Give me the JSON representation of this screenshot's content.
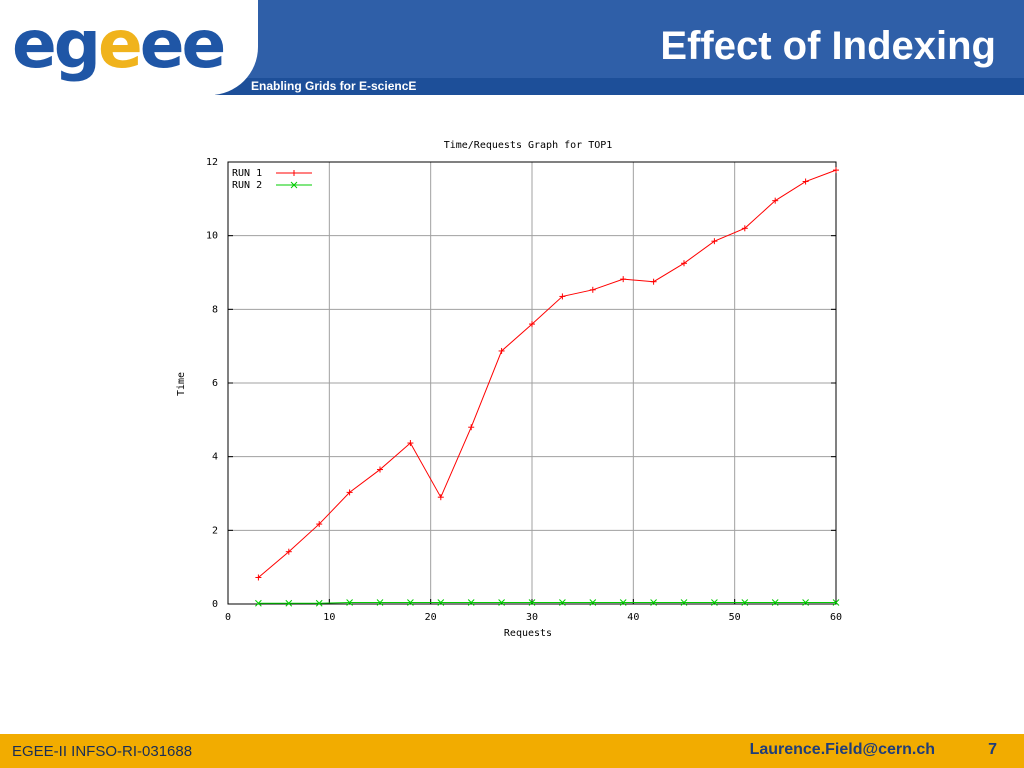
{
  "header": {
    "logo_text_1": "eg",
    "logo_text_2": "e",
    "logo_text_3": "ee",
    "title": "Effect of Indexing",
    "tagline": "Enabling Grids for E-sciencE"
  },
  "footer": {
    "project": "EGEE-II INFSO-RI-031688",
    "email": "Laurence.Field@cern.ch",
    "page": "7"
  },
  "colors": {
    "header_blue": "#2f5fa8",
    "footer_gold": "#f2ac00",
    "run1": "#ff0000",
    "run2": "#00cc00"
  },
  "chart_data": {
    "type": "line",
    "title": "Time/Requests Graph for TOP1",
    "xlabel": "Requests",
    "ylabel": "Time",
    "xlim": [
      0,
      60
    ],
    "ylim": [
      0,
      12
    ],
    "xticks": [
      0,
      10,
      20,
      30,
      40,
      50,
      60
    ],
    "yticks": [
      0,
      2,
      4,
      6,
      8,
      10,
      12
    ],
    "grid": true,
    "legend_position": "top-left",
    "series": [
      {
        "name": "RUN 1",
        "marker": "+",
        "color": "#ff0000",
        "x": [
          3,
          6,
          9,
          12,
          15,
          18,
          21,
          24,
          27,
          30,
          33,
          36,
          39,
          42,
          45,
          48,
          51,
          54,
          57,
          60
        ],
        "y": [
          0.72,
          1.42,
          2.17,
          3.03,
          3.65,
          4.37,
          2.9,
          4.8,
          6.87,
          7.6,
          8.35,
          8.53,
          8.82,
          8.75,
          9.25,
          9.85,
          10.2,
          10.95,
          11.47,
          11.78
        ]
      },
      {
        "name": "RUN 2",
        "marker": "x",
        "color": "#00cc00",
        "x": [
          3,
          6,
          9,
          12,
          15,
          18,
          21,
          24,
          27,
          30,
          33,
          36,
          39,
          42,
          45,
          48,
          51,
          54,
          57,
          60
        ],
        "y": [
          0.02,
          0.02,
          0.02,
          0.04,
          0.04,
          0.04,
          0.04,
          0.04,
          0.04,
          0.04,
          0.04,
          0.04,
          0.04,
          0.04,
          0.04,
          0.04,
          0.04,
          0.04,
          0.04,
          0.04
        ]
      }
    ]
  }
}
